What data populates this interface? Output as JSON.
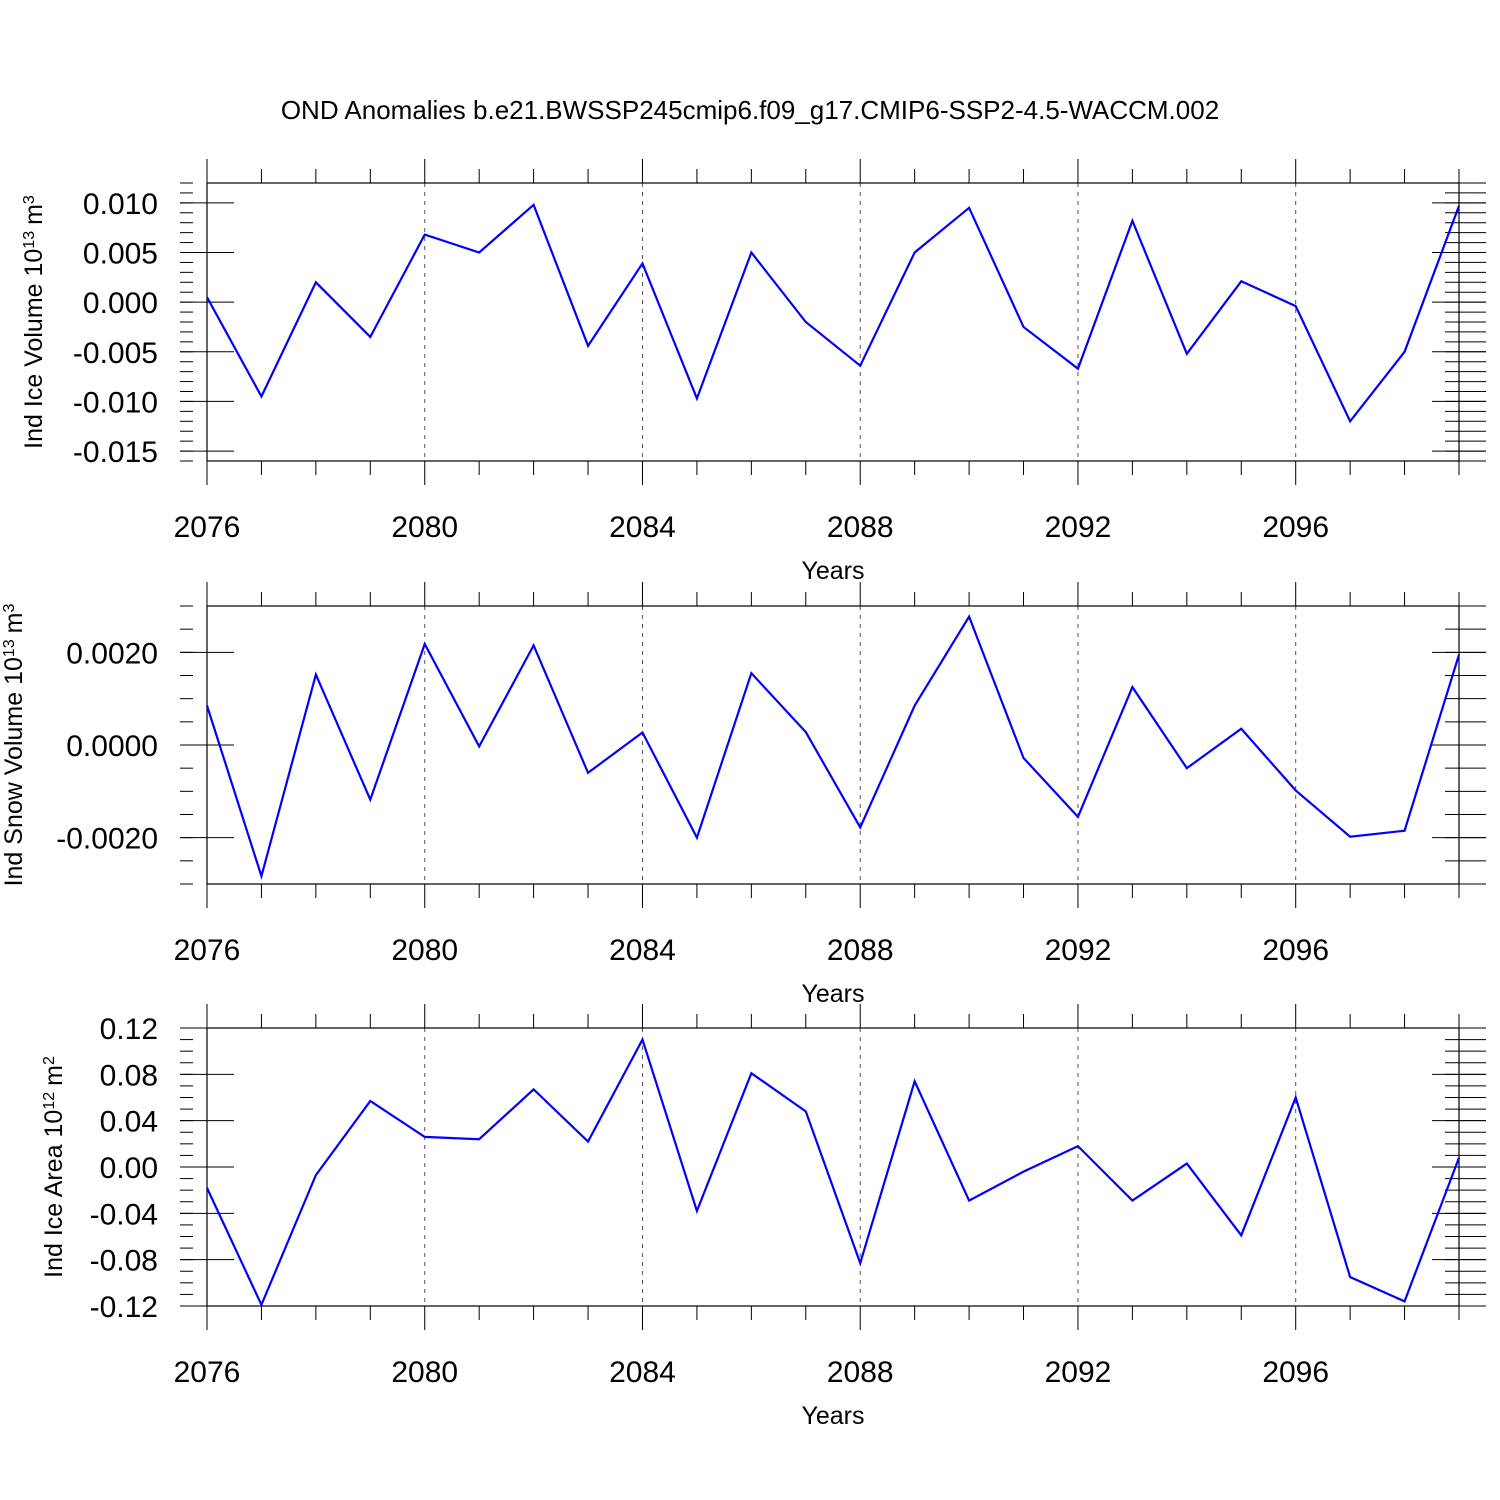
{
  "chart_data": {
    "type": "line",
    "title": "OND Anomalies b.e21.BWSSP245cmip6.f09_g17.CMIP6-SSP2-4.5-WACCM.002",
    "x": [
      2076,
      2077,
      2078,
      2079,
      2080,
      2081,
      2082,
      2083,
      2084,
      2085,
      2086,
      2087,
      2088,
      2089,
      2090,
      2091,
      2092,
      2093,
      2094,
      2095,
      2096,
      2097,
      2098,
      2099
    ],
    "xlim": [
      2076,
      2099
    ],
    "xticks": [
      "2076",
      "2080",
      "2084",
      "2088",
      "2092",
      "2096"
    ],
    "xlabel": "Years",
    "color": "#0000ff",
    "panels": [
      {
        "name": "ice-volume",
        "ylabel": "Ind Ice Volume 10",
        "ylabel_exp": "13",
        "ylabel_unit": "m",
        "ylabel_unit_exp": "3",
        "ylim": [
          -0.016,
          0.012
        ],
        "yticks": [
          "0.010",
          "0.005",
          "0.000",
          "-0.005",
          "-0.010",
          "-0.015"
        ],
        "yminor_step": 0.001,
        "values": [
          0.0005,
          -0.0095,
          0.002,
          -0.0035,
          0.0068,
          0.005,
          0.0098,
          -0.0044,
          0.0039,
          -0.0097,
          0.005,
          -0.002,
          -0.0064,
          0.005,
          0.0095,
          -0.0025,
          -0.0067,
          0.0082,
          -0.0052,
          0.0021,
          -0.0004,
          -0.012,
          -0.005,
          0.0097
        ]
      },
      {
        "name": "snow-volume",
        "ylabel": "Ind Snow Volume 10",
        "ylabel_exp": "13",
        "ylabel_unit": "m",
        "ylabel_unit_exp": "3",
        "ylim": [
          -0.003,
          0.003
        ],
        "yticks": [
          "0.0020",
          "0.0000",
          "-0.0020"
        ],
        "yminor_step": 0.0005,
        "values": [
          0.00085,
          -0.00283,
          0.00152,
          -0.00118,
          0.00218,
          -3e-05,
          0.00215,
          -0.0006,
          0.00027,
          -0.002,
          0.00155,
          0.00028,
          -0.00178,
          0.00085,
          0.00277,
          -0.00028,
          -0.00155,
          0.00125,
          -0.0005,
          0.00035,
          -0.00098,
          -0.00198,
          -0.00185,
          0.00195
        ]
      },
      {
        "name": "ice-area",
        "ylabel": "Ind Ice Area 10",
        "ylabel_exp": "12",
        "ylabel_unit": "m",
        "ylabel_unit_exp": "2",
        "ylim": [
          -0.12,
          0.12
        ],
        "yticks": [
          "0.12",
          "0.08",
          "0.04",
          "0.00",
          "-0.04",
          "-0.08",
          "-0.12"
        ],
        "yminor_step": 0.01,
        "values": [
          -0.018,
          -0.119,
          -0.007,
          0.057,
          0.026,
          0.024,
          0.067,
          0.022,
          0.11,
          -0.038,
          0.081,
          0.048,
          -0.083,
          0.074,
          -0.029,
          -0.004,
          0.018,
          -0.029,
          0.003,
          -0.059,
          0.06,
          -0.095,
          -0.116,
          0.008
        ]
      }
    ]
  }
}
